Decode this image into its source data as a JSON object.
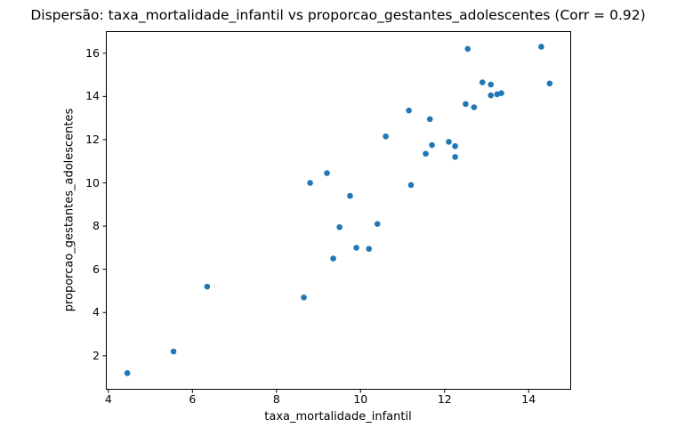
{
  "figure": {
    "background": "#ffffff"
  },
  "chart_data": {
    "type": "scatter",
    "title": "Dispersão: taxa_mortalidade_infantil vs proporcao_gestantes_adolescentes (Corr = 0.92)",
    "xlabel": "taxa_mortalidade_infantil",
    "ylabel": "proporcao_gestantes_adolescentes",
    "correlation": 0.92,
    "xlim": [
      3.95,
      15.0
    ],
    "ylim": [
      0.45,
      17.0
    ],
    "xticks": [
      4,
      6,
      8,
      10,
      12,
      14
    ],
    "yticks": [
      2,
      4,
      6,
      8,
      10,
      12,
      14,
      16
    ],
    "grid": false,
    "legend": "none",
    "marker": {
      "color": "#1f77b4",
      "radius_px": 3.3
    },
    "axis_color": "#000000",
    "points": [
      [
        4.45,
        1.2
      ],
      [
        5.55,
        2.2
      ],
      [
        6.35,
        5.2
      ],
      [
        8.65,
        4.7
      ],
      [
        8.8,
        10.0
      ],
      [
        9.2,
        10.45
      ],
      [
        9.35,
        6.5
      ],
      [
        9.5,
        7.95
      ],
      [
        9.75,
        9.4
      ],
      [
        9.9,
        7.0
      ],
      [
        10.2,
        6.95
      ],
      [
        10.4,
        8.1
      ],
      [
        10.6,
        12.15
      ],
      [
        11.15,
        13.35
      ],
      [
        11.2,
        9.9
      ],
      [
        11.55,
        11.35
      ],
      [
        11.65,
        12.95
      ],
      [
        11.7,
        11.75
      ],
      [
        12.1,
        11.9
      ],
      [
        12.25,
        11.7
      ],
      [
        12.25,
        11.2
      ],
      [
        12.5,
        13.65
      ],
      [
        12.55,
        16.2
      ],
      [
        12.7,
        13.5
      ],
      [
        12.9,
        14.65
      ],
      [
        13.1,
        14.55
      ],
      [
        13.1,
        14.05
      ],
      [
        13.25,
        14.1
      ],
      [
        13.35,
        14.15
      ],
      [
        14.3,
        16.3
      ],
      [
        14.5,
        14.6
      ]
    ]
  }
}
